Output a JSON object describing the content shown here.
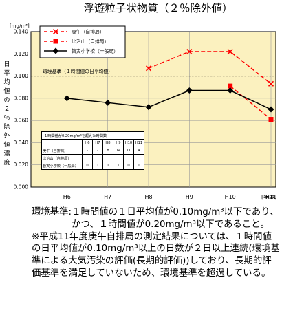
{
  "chart_data": {
    "type": "line",
    "title": "浮遊粒子状物質（２％除外値）",
    "y_unit": "[mg/m³]",
    "ylabel": [
      "日",
      "平",
      "均",
      "値",
      "の",
      "２",
      "％",
      "除",
      "外",
      "値",
      "濃",
      "度"
    ],
    "x_unit": "[年度]",
    "categories": [
      "H6",
      "H7",
      "H8",
      "H9",
      "H10",
      "H11"
    ],
    "ylim": [
      0,
      0.14
    ],
    "yticks": [
      "0.000",
      "0.020",
      "0.040",
      "0.060",
      "0.080",
      "0.100",
      "0.120",
      "0.140"
    ],
    "reference": {
      "label": "環境基準（１時間値の日平均値）",
      "value": 0.1
    },
    "series": [
      {
        "name": "庚午（自排局）",
        "values": [
          null,
          null,
          0.107,
          0.122,
          0.122,
          0.093
        ],
        "color": "#ff0000",
        "marker": "x",
        "dash": true
      },
      {
        "name": "比治山（自排局）",
        "values": [
          null,
          null,
          null,
          null,
          0.091,
          0.061
        ],
        "color": "#ff0000",
        "marker": "square",
        "dash": true
      },
      {
        "name": "皆実小学校（一般局）",
        "values": [
          0.08,
          0.076,
          0.072,
          0.087,
          0.087,
          0.07
        ],
        "color": "#000000",
        "marker": "diamond",
        "dash": false
      }
    ],
    "grid": true,
    "legend": "top-left",
    "inset_table": {
      "caption": "１時間値が0.20mg/m³を超えた時間数",
      "columns": [
        "H6",
        "H7",
        "H8",
        "H9",
        "H10",
        "H11"
      ],
      "rows": [
        {
          "name": "庚午（自排局）",
          "values": [
            "-",
            "-",
            "8",
            "14",
            "11",
            "4"
          ]
        },
        {
          "name": "比治山（自排局）",
          "values": [
            "-",
            "-",
            "-",
            "-",
            "-",
            "-"
          ]
        },
        {
          "name": "皆実小学校（一般局）",
          "values": [
            "0",
            "1",
            "1",
            "1",
            "0",
            "0"
          ]
        }
      ]
    }
  },
  "notes": {
    "std_label": "環境基準:",
    "std_text": "１時間値の１日平均値が0.10mg/m³以下であり、かつ、１時間値が0.20mg/m³以下であること。",
    "remark": "※平成11年度庚午自排局の測定結果については、１時間値の日平均値が0.10mg/m³以上の日数が２日以上連続(環境基準による大気汚染の評価(長期的評価))しており、長期的評価基準を満足していないため、環境基準を超過している。"
  },
  "colors": {
    "plot_bg": "#fbf1bf",
    "grid": "#999999",
    "frame": "#000000"
  }
}
